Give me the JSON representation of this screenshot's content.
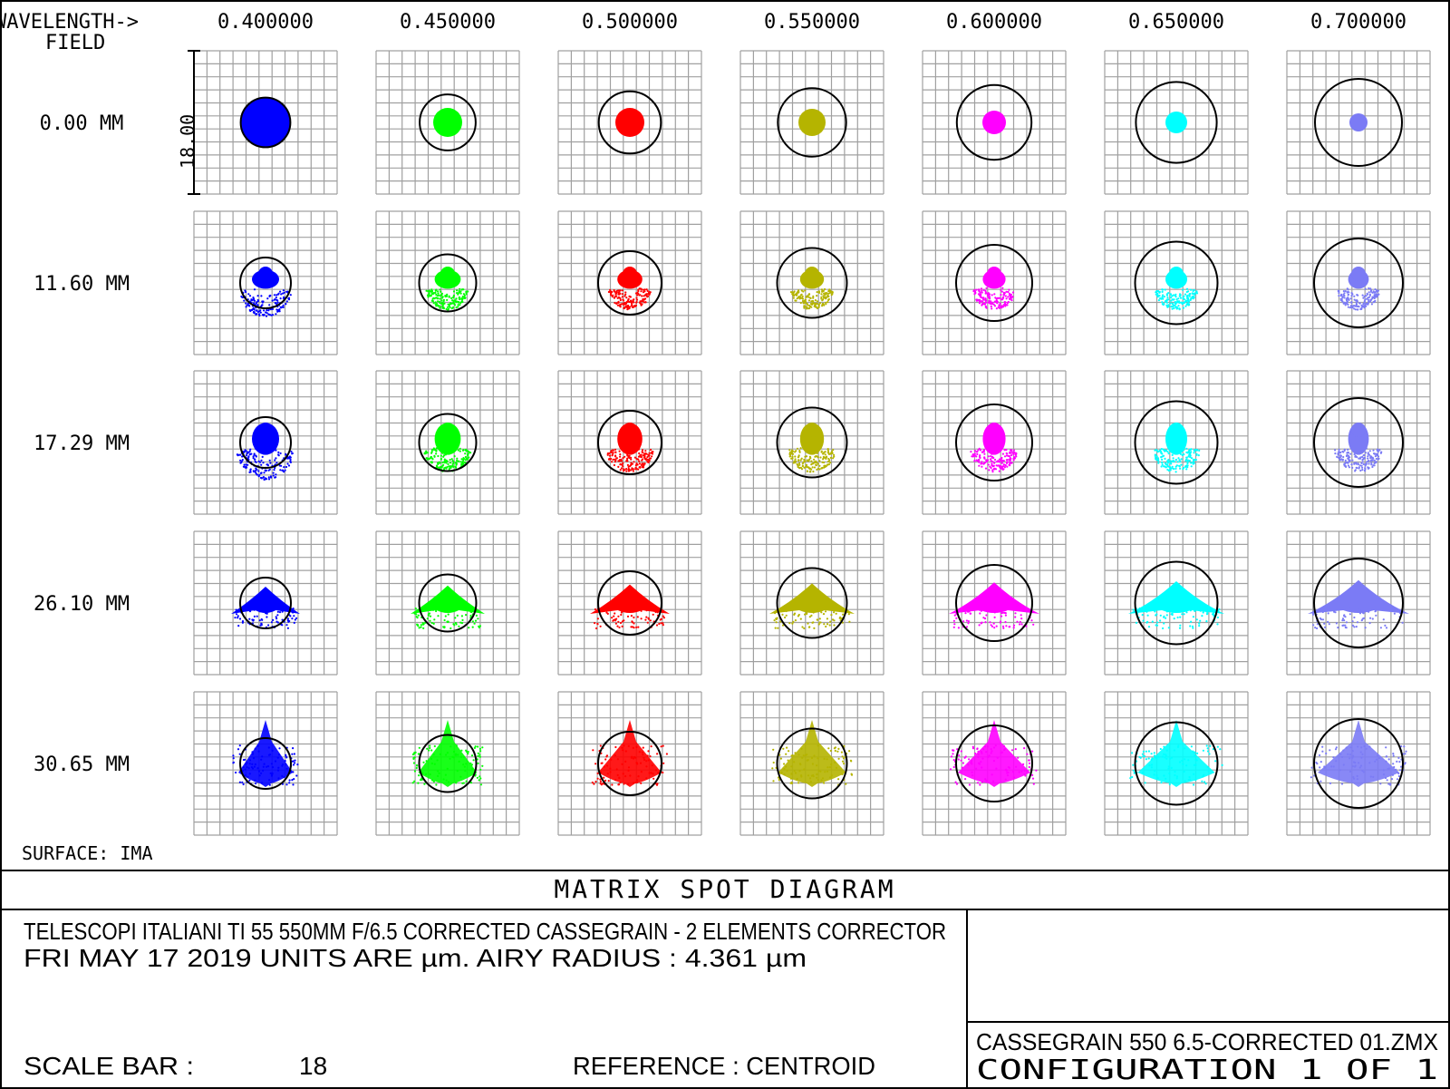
{
  "header": {
    "wavelength_label": "WAVELENGTH->",
    "field_label": "FIELD",
    "wavelengths": [
      "0.400000",
      "0.450000",
      "0.500000",
      "0.550000",
      "0.600000",
      "0.650000",
      "0.700000"
    ]
  },
  "fields": [
    "0.00 MM",
    "11.60 MM",
    "17.29 MM",
    "26.10 MM",
    "30.65 MM"
  ],
  "scale_marker": "18.00",
  "surface_label": "SURFACE: IMA",
  "title": "MATRIX SPOT DIAGRAM",
  "info": {
    "line1": "TELESCOPI ITALIANI TI 55 550MM F/6.5  CORRECTED CASSEGRAIN - 2 ELEMENTS CORRECTOR",
    "line2": "FRI MAY 17 2019  UNITS ARE µm.   AIRY RADIUS : 4.361 µm",
    "scale_bar_label": "SCALE BAR  :",
    "scale_bar_value": "18",
    "reference": "REFERENCE  : CENTROID"
  },
  "file": {
    "name": "CASSEGRAIN 550 6.5-CORRECTED 01.ZMX",
    "configuration": "CONFIGURATION  1  OF  1"
  },
  "colors": {
    "wavelength_colors": [
      "#0000ff",
      "#00ff00",
      "#ff0000",
      "#b5b400",
      "#ff00ff",
      "#00ffff",
      "#7b7bf5"
    ],
    "grid": "#a0a0a0",
    "frame": "#000000"
  },
  "chart_data": {
    "type": "spot-matrix",
    "units": "µm",
    "airy_radius": 4.361,
    "scale_bar": 18,
    "reference": "CENTROID",
    "wavelengths_um": [
      0.4,
      0.45,
      0.5,
      0.55,
      0.6,
      0.65,
      0.7
    ],
    "fields_mm": [
      0.0,
      11.6,
      17.29,
      26.1,
      30.65
    ]
  }
}
